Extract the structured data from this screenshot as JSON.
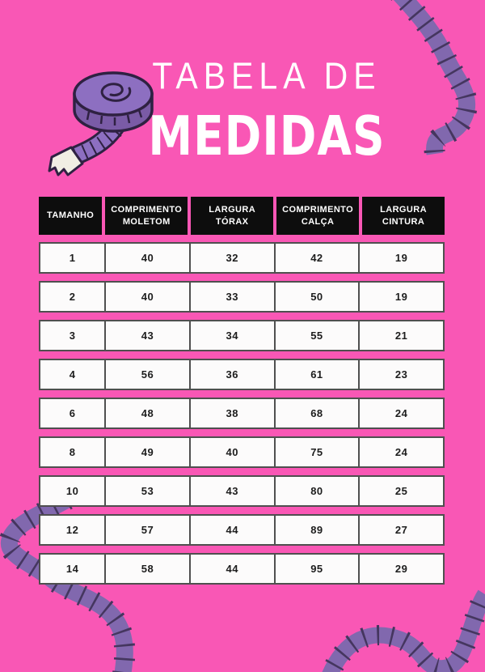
{
  "title": {
    "line1": "TABELA DE",
    "line2": "MEDIDAS"
  },
  "table": {
    "headers": [
      "TAMANHO",
      "COMPRIMENTO MOLETOM",
      "LARGURA TÓRAX",
      "COMPRIMENTO CALÇA",
      "LARGURA CINTURA"
    ],
    "rows": [
      [
        1,
        40,
        32,
        42,
        19
      ],
      [
        2,
        40,
        33,
        50,
        19
      ],
      [
        3,
        43,
        34,
        55,
        21
      ],
      [
        4,
        56,
        36,
        61,
        23
      ],
      [
        6,
        48,
        38,
        68,
        24
      ],
      [
        8,
        49,
        40,
        75,
        24
      ],
      [
        10,
        53,
        43,
        80,
        25
      ],
      [
        12,
        57,
        44,
        89,
        27
      ],
      [
        14,
        58,
        44,
        95,
        29
      ]
    ]
  },
  "icons": {
    "tape_roll": "measuring-tape-roll-icon",
    "ribbon_top_right": "tape-ribbon-top-right-icon",
    "ribbon_bottom_left": "tape-ribbon-bottom-left-icon",
    "ribbon_bottom_right": "tape-ribbon-bottom-right-icon"
  },
  "colors": {
    "background": "#f957b5",
    "header_bg": "#0d0d0d",
    "header_text": "#ffffff",
    "row_bg": "#fcfbfb",
    "row_border": "#4f4f4f",
    "row_text": "#1d1d1d",
    "title_text": "#ffffff",
    "tape_fill": "#8168ae",
    "tape_ticks": "#45365f",
    "roll_fill": "#8d6fc1",
    "roll_side_fill": "#7a5ba6",
    "roll_outline": "#2f2142",
    "tape_end": "#f1eee4"
  }
}
